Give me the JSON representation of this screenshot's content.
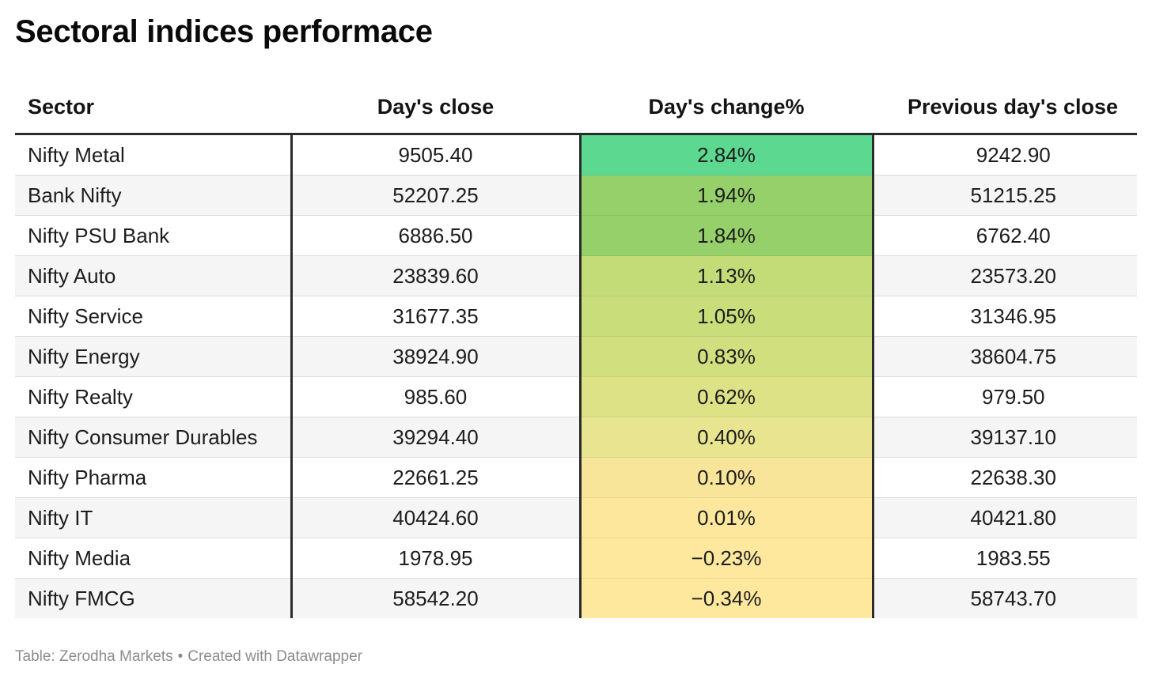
{
  "title": "Sectoral indices performace",
  "footer": {
    "source": "Table: Zerodha Markets",
    "separator": "•",
    "credit": "Created with Datawrapper"
  },
  "chart_data": {
    "type": "table",
    "title": "Sectoral indices performace",
    "columns": [
      "Sector",
      "Day's close",
      "Day's change%",
      "Previous day's close"
    ],
    "rows": [
      [
        "Nifty Metal",
        "9505.40",
        "2.84%",
        "9242.90"
      ],
      [
        "Bank Nifty",
        "52207.25",
        "1.94%",
        "51215.25"
      ],
      [
        "Nifty PSU Bank",
        "6886.50",
        "1.84%",
        "6762.40"
      ],
      [
        "Nifty Auto",
        "23839.60",
        "1.13%",
        "23573.20"
      ],
      [
        "Nifty Service",
        "31677.35",
        "1.05%",
        "31346.95"
      ],
      [
        "Nifty Energy",
        "38924.90",
        "0.83%",
        "38604.75"
      ],
      [
        "Nifty Realty",
        "985.60",
        "0.62%",
        "979.50"
      ],
      [
        "Nifty Consumer Durables",
        "39294.40",
        "0.40%",
        "39137.10"
      ],
      [
        "Nifty Pharma",
        "22661.25",
        "0.10%",
        "22638.30"
      ],
      [
        "Nifty IT",
        "40424.60",
        "0.01%",
        "40421.80"
      ],
      [
        "Nifty Media",
        "1978.95",
        "−0.23%",
        "1983.55"
      ],
      [
        "Nifty FMCG",
        "58542.20",
        "−0.34%",
        "58743.70"
      ]
    ],
    "change_cell_colors": [
      "#5cd891",
      "#96d06a",
      "#96d06a",
      "#c4dc78",
      "#c9dd7a",
      "#d1df7f",
      "#dde287",
      "#e8e490",
      "#f9e59a",
      "#fce79c",
      "#fde89d",
      "#fde89e"
    ],
    "colors": {
      "header_rule": "#2b2b2b",
      "zebra": "#f5f5f5",
      "footer_text": "#8c8c8c"
    }
  }
}
